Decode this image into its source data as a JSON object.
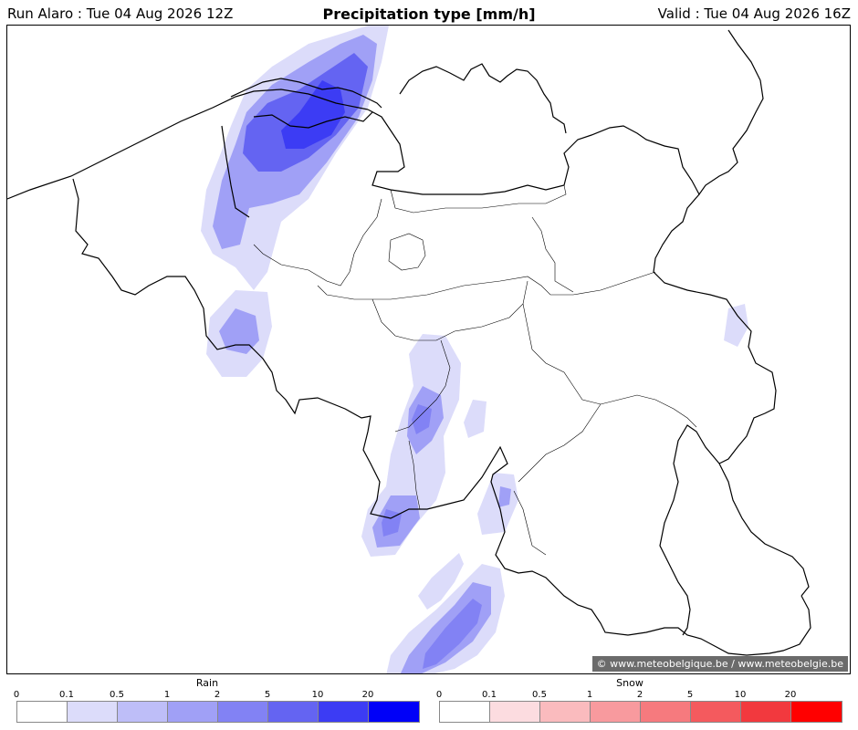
{
  "header": {
    "run": "Run Alaro : Tue 04 Aug 2026 12Z",
    "title": "Precipitation type [mm/h]",
    "valid": "Valid : Tue 04 Aug 2026 16Z"
  },
  "credit": "© www.meteobelgique.be / www.meteobelgie.be",
  "legend": {
    "rain": {
      "title": "Rain",
      "ticks": [
        "0",
        "0.1",
        "0.5",
        "1",
        "2",
        "5",
        "10",
        "20"
      ],
      "colors": [
        "#ffffff",
        "#dcdcfa",
        "#bebef8",
        "#a0a0f6",
        "#8282f4",
        "#6464f2",
        "#3c3cf4",
        "#0000f8"
      ]
    },
    "snow": {
      "title": "Snow",
      "ticks": [
        "0",
        "0.1",
        "0.5",
        "1",
        "2",
        "5",
        "10",
        "20"
      ],
      "colors": [
        "#ffffff",
        "#fcdce0",
        "#fabbbe",
        "#f89a9e",
        "#f67a7e",
        "#f45a5e",
        "#f2393e",
        "#ff0000"
      ]
    }
  }
}
